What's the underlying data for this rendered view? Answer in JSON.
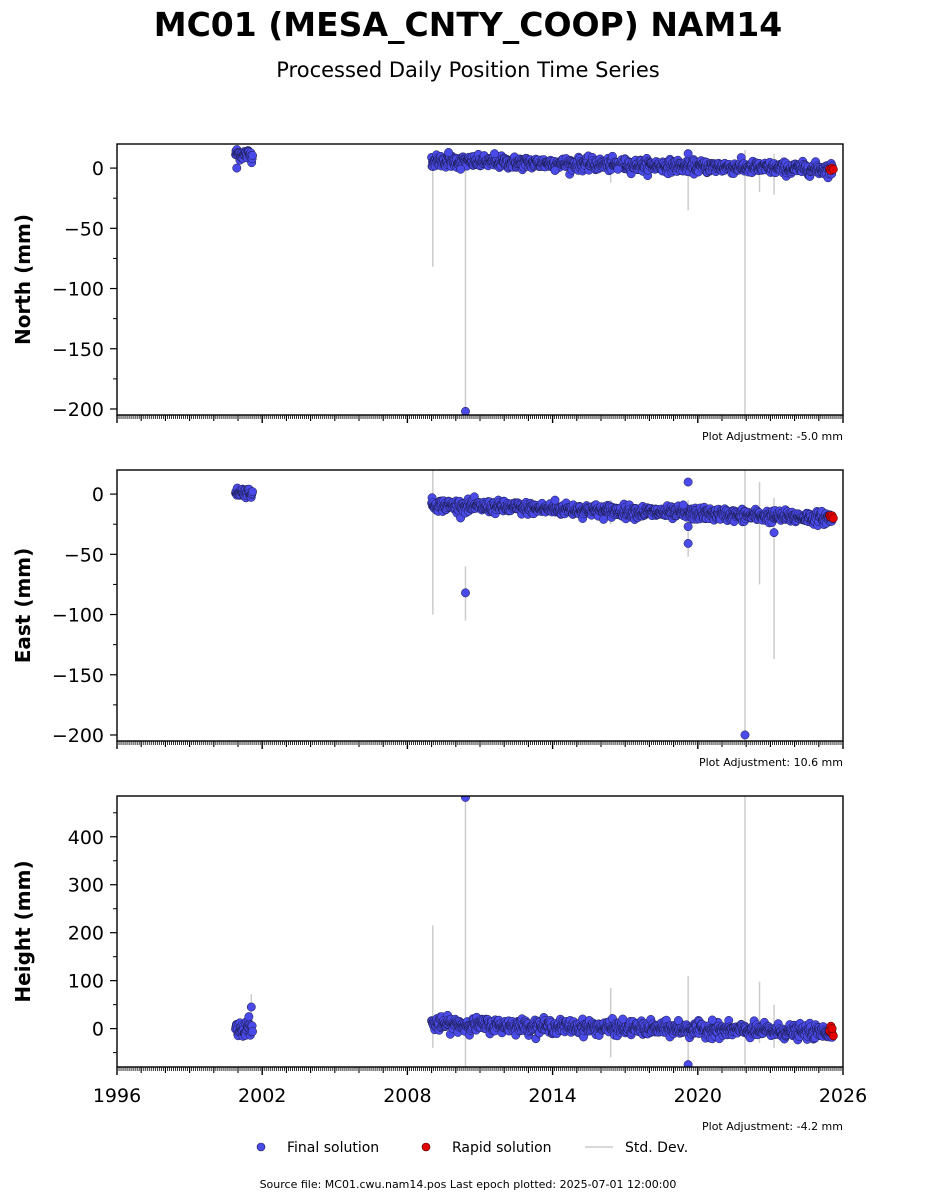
{
  "chart_data": [
    {
      "type": "scatter",
      "title": "MC01 (MESA_CNTY_COOP) NAM14",
      "subtitle": "Processed Daily Position Time Series",
      "ylabel": "North (mm)",
      "adjustment": "Plot Adjustment: -5.0 mm",
      "xlim": [
        1996,
        2026
      ],
      "ylim": [
        -205,
        20
      ],
      "yticks": [
        "0",
        "−50",
        "−100",
        "−150",
        "−200"
      ],
      "ytick_values": [
        0,
        -50,
        -100,
        -150,
        -200
      ],
      "clusters": [
        {
          "x_start": 2000.9,
          "x_end": 2001.6,
          "trend": [
            12,
            11
          ],
          "spread": 2.5,
          "count": 40
        },
        {
          "x_start": 2009.0,
          "x_end": 2025.55,
          "trend": [
            6,
            -1
          ],
          "spread": 2.5,
          "count": 900
        }
      ],
      "outliers": [
        [
          2000.95,
          0
        ],
        [
          2010.4,
          -202
        ],
        [
          2009.7,
          13
        ],
        [
          2010.2,
          -1
        ],
        [
          2011.6,
          12
        ],
        [
          2019.6,
          12
        ],
        [
          2014.1,
          -2
        ],
        [
          2016.7,
          -1
        ]
      ],
      "rapid": [
        [
          2025.45,
          -1
        ],
        [
          2025.5,
          -2
        ],
        [
          2025.55,
          0
        ],
        [
          2025.6,
          -1
        ]
      ],
      "stddev": [
        [
          2009.05,
          10,
          -82
        ],
        [
          2010.4,
          10,
          -200
        ],
        [
          2016.4,
          6,
          -12
        ],
        [
          2019.6,
          12,
          -35
        ],
        [
          2021.95,
          15,
          -205
        ],
        [
          2022.55,
          7,
          -20
        ],
        [
          2023.15,
          12,
          -22
        ],
        [
          2000.95,
          16,
          8
        ]
      ]
    },
    {
      "type": "scatter",
      "ylabel": "East (mm)",
      "adjustment": "Plot Adjustment: 10.6 mm",
      "xlim": [
        1996,
        2026
      ],
      "ylim": [
        -205,
        20
      ],
      "yticks": [
        "0",
        "−50",
        "−100",
        "−150",
        "−200"
      ],
      "ytick_values": [
        0,
        -50,
        -100,
        -150,
        -200
      ],
      "clusters": [
        {
          "x_start": 2000.9,
          "x_end": 2001.6,
          "trend": [
            2,
            1
          ],
          "spread": 2,
          "count": 40
        },
        {
          "x_start": 2009.0,
          "x_end": 2025.55,
          "trend": [
            -9,
            -20
          ],
          "spread": 2.5,
          "count": 900
        }
      ],
      "outliers": [
        [
          2010.4,
          -82
        ],
        [
          2019.6,
          10
        ],
        [
          2019.6,
          -41
        ],
        [
          2019.6,
          -27
        ],
        [
          2021.95,
          -200
        ],
        [
          2023.15,
          -32
        ],
        [
          2014.1,
          -5
        ],
        [
          2019.4,
          -9
        ]
      ],
      "rapid": [
        [
          2025.45,
          -18
        ],
        [
          2025.5,
          -19
        ],
        [
          2025.55,
          -18
        ],
        [
          2025.6,
          -20
        ]
      ],
      "stddev": [
        [
          2009.05,
          20,
          -100
        ],
        [
          2010.4,
          -60,
          -105
        ],
        [
          2016.4,
          -5,
          -25
        ],
        [
          2019.6,
          -5,
          -52
        ],
        [
          2021.95,
          20,
          -205
        ],
        [
          2022.55,
          10,
          -75
        ],
        [
          2023.15,
          -3,
          -137
        ]
      ]
    },
    {
      "type": "scatter",
      "ylabel": "Height (mm)",
      "adjustment": "Plot Adjustment: -4.2 mm",
      "xlim": [
        1996,
        2026
      ],
      "ylim": [
        -80,
        485
      ],
      "yticks": [
        "400",
        "300",
        "200",
        "100",
        "0"
      ],
      "ytick_values": [
        400,
        300,
        200,
        100,
        0
      ],
      "xticks": [
        "1996",
        "2002",
        "2008",
        "2014",
        "2020",
        "2026"
      ],
      "xtick_values": [
        1996,
        2002,
        2008,
        2014,
        2020,
        2026
      ],
      "clusters": [
        {
          "x_start": 2000.9,
          "x_end": 2001.6,
          "trend": [
            0,
            2
          ],
          "spread": 8,
          "count": 40
        },
        {
          "x_start": 2009.0,
          "x_end": 2025.55,
          "trend": [
            10,
            -8
          ],
          "spread": 7,
          "count": 900
        }
      ],
      "outliers": [
        [
          2010.4,
          482
        ],
        [
          2019.6,
          -75
        ],
        [
          2001.55,
          45
        ],
        [
          2001.45,
          25
        ],
        [
          2016.9,
          20
        ],
        [
          2019.2,
          17
        ],
        [
          2020.6,
          18
        ]
      ],
      "rapid": [
        [
          2025.45,
          -5
        ],
        [
          2025.5,
          5
        ],
        [
          2025.55,
          -10
        ],
        [
          2025.6,
          -15
        ],
        [
          2025.55,
          0
        ]
      ],
      "stddev": [
        [
          2009.05,
          215,
          -40
        ],
        [
          2010.4,
          485,
          -80
        ],
        [
          2016.4,
          85,
          -60
        ],
        [
          2019.6,
          110,
          -75
        ],
        [
          2021.95,
          485,
          -75
        ],
        [
          2022.55,
          98,
          -30
        ],
        [
          2023.15,
          50,
          -40
        ],
        [
          2001.55,
          72,
          -15
        ]
      ]
    }
  ],
  "legend": [
    {
      "label": "Final solution",
      "color": "#4a4ae8"
    },
    {
      "label": "Rapid solution",
      "color": "#e00000"
    },
    {
      "label": "Std. Dev.",
      "color": "#cccccc"
    }
  ],
  "source": "Source file: MC01.cwu.nam14.pos  Last epoch plotted: 2025-07-01 12:00:00",
  "colors": {
    "final": "#4a4ae8",
    "rapid": "#e00000",
    "stddev": "#cccccc",
    "edge": "#1a1a4a"
  }
}
